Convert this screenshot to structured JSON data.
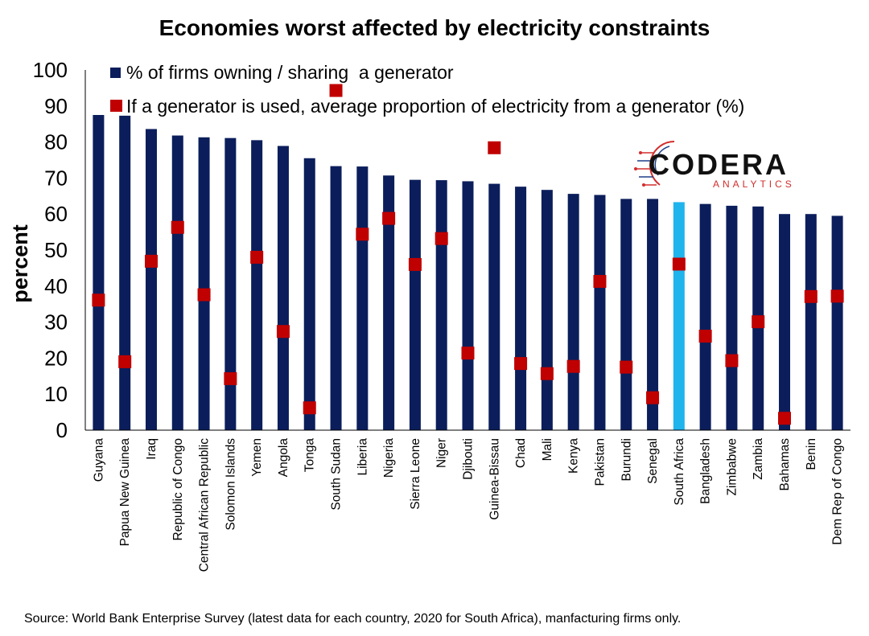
{
  "chart_data": {
    "type": "bar",
    "title": "Economies worst affected by electricity constraints",
    "ylabel": "percent",
    "xlabel": "",
    "ylim": [
      0,
      100
    ],
    "yticks": [
      0,
      10,
      20,
      30,
      40,
      50,
      60,
      70,
      80,
      90,
      100
    ],
    "grid": false,
    "legend_position": "top-left",
    "categories": [
      "Guyana",
      "Papua New Guinea",
      "Iraq",
      "Republic of Congo",
      "Central African Republic",
      "Solomon Islands",
      "Yemen",
      "Angola",
      "Tonga",
      "South Sudan",
      "Liberia",
      "Nigeria",
      "Sierra Leone",
      "Niger",
      "Djibouti",
      "Guinea-Bissau",
      "Chad",
      "Mali",
      "Kenya",
      "Pakistan",
      "Burundi",
      "Senegal",
      "South Africa",
      "Bangladesh",
      "Zimbabwe",
      "Zambia",
      "Bahamas",
      "Benin",
      "Dem Rep of Congo"
    ],
    "highlight_category": "South Africa",
    "series": [
      {
        "name": "% of firms owning / sharing  a generator",
        "mark": "bar",
        "color": "#0b1e5b",
        "highlight_color": "#1fb4ec",
        "values": [
          87.5,
          87.3,
          83.6,
          81.8,
          81.3,
          81.1,
          80.5,
          78.9,
          75.5,
          73.3,
          73.2,
          70.7,
          69.5,
          69.4,
          69.1,
          68.4,
          67.6,
          66.7,
          65.6,
          65.3,
          64.2,
          64.2,
          63.3,
          62.8,
          62.3,
          62.1,
          60.0,
          60.0,
          59.5
        ]
      },
      {
        "name": "If a generator is used, average proportion of electricity from a generator (%)",
        "mark": "square",
        "color": "#c00000",
        "values": [
          36.1,
          19.0,
          46.9,
          56.3,
          37.6,
          14.3,
          48.0,
          27.4,
          6.2,
          94.3,
          54.4,
          58.8,
          46.0,
          53.2,
          21.4,
          78.4,
          18.5,
          15.7,
          17.7,
          41.3,
          17.5,
          9.0,
          46.1,
          26.1,
          19.3,
          30.1,
          3.3,
          37.1,
          37.2
        ]
      }
    ]
  },
  "logo": {
    "name": "CODERA",
    "tagline": "ANALYTICS"
  },
  "source_note": "Source: World Bank Enterprise Survey (latest data for each country, 2020 for South Africa), manfacturing firms only."
}
